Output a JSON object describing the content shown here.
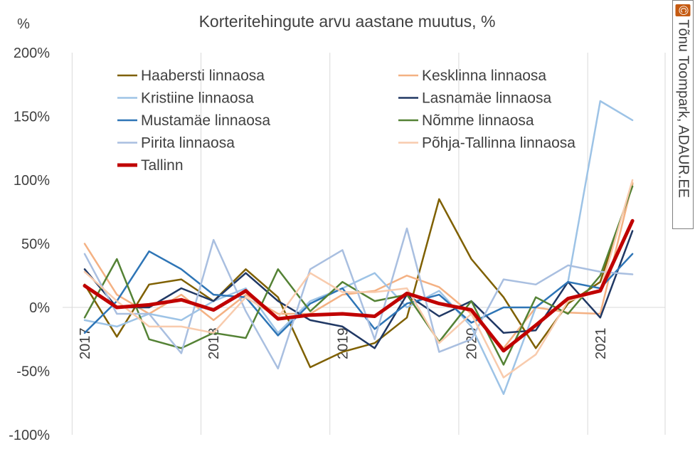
{
  "chart_data": {
    "type": "line",
    "title": "Korteritehingute arvu aastane muutus, %",
    "ylabel": "%",
    "ylim": [
      -100,
      200
    ],
    "y_ticks": [
      "-100%",
      "-50%",
      "0%",
      "50%",
      "100%",
      "150%",
      "200%"
    ],
    "x_tick_labels": [
      {
        "label": "2017",
        "index": 0
      },
      {
        "label": "2018",
        "index": 4
      },
      {
        "label": "2019",
        "index": 8
      },
      {
        "label": "2020",
        "index": 12
      },
      {
        "label": "2021",
        "index": 16
      }
    ],
    "n_points": 18,
    "grid": "vertical",
    "legend_position": "top",
    "series": [
      {
        "name": "Haabersti linnaosa",
        "color": "#7f6000",
        "width": 2.5,
        "values": [
          18,
          -23,
          18,
          22,
          5,
          30,
          8,
          -47,
          -35,
          -28,
          -8,
          85,
          38,
          8,
          -32,
          3,
          20,
          97
        ]
      },
      {
        "name": "Kesklinna linnaosa",
        "color": "#f4b183",
        "width": 2.5,
        "values": [
          50,
          10,
          -5,
          10,
          -10,
          10,
          -5,
          -5,
          10,
          13,
          25,
          16,
          -5,
          -32,
          0,
          -4,
          -5,
          98
        ]
      },
      {
        "name": "Kristiine linnaosa",
        "color": "#9dc3e6",
        "width": 2.5,
        "values": [
          -10,
          -15,
          -5,
          -10,
          5,
          15,
          -20,
          5,
          15,
          27,
          0,
          13,
          -15,
          -68,
          0,
          20,
          162,
          147
        ]
      },
      {
        "name": "Lasnamäe linnaosa",
        "color": "#203864",
        "width": 2.5,
        "values": [
          30,
          0,
          0,
          15,
          5,
          27,
          5,
          -10,
          -15,
          -32,
          10,
          -7,
          5,
          -20,
          -18,
          20,
          -8,
          60
        ]
      },
      {
        "name": "Mustamäe linnaosa",
        "color": "#2e75b6",
        "width": 2.5,
        "values": [
          -20,
          5,
          44,
          30,
          10,
          8,
          -22,
          3,
          15,
          -17,
          3,
          10,
          -12,
          0,
          0,
          20,
          15,
          42
        ]
      },
      {
        "name": "Nõmme linnaosa",
        "color": "#548235",
        "width": 2.5,
        "values": [
          -8,
          38,
          -25,
          -32,
          -20,
          -24,
          30,
          -3,
          20,
          5,
          10,
          -27,
          5,
          -45,
          8,
          -5,
          25,
          95
        ]
      },
      {
        "name": "Pirita linnaosa",
        "color": "#a9bfe0",
        "width": 2.5,
        "values": [
          42,
          -5,
          -5,
          -36,
          53,
          -3,
          -48,
          30,
          45,
          -25,
          62,
          -35,
          -25,
          22,
          18,
          33,
          28,
          26
        ]
      },
      {
        "name": "Põhja-Tallinna linnaosa",
        "color": "#f8cbad",
        "width": 2.5,
        "values": [
          28,
          5,
          -15,
          -15,
          -20,
          8,
          -8,
          27,
          12,
          12,
          15,
          -28,
          -5,
          -55,
          -37,
          5,
          13,
          100
        ]
      },
      {
        "name": "Tallinn",
        "color": "#c00000",
        "width": 5,
        "values": [
          17,
          0,
          2,
          6,
          -2,
          13,
          -9,
          -6,
          -5,
          -7,
          11,
          3,
          -2,
          -34,
          -14,
          7,
          13,
          68
        ]
      }
    ]
  },
  "credit": {
    "mark": "©",
    "text": "Tõnu Toompark, ADAUR.EE"
  }
}
